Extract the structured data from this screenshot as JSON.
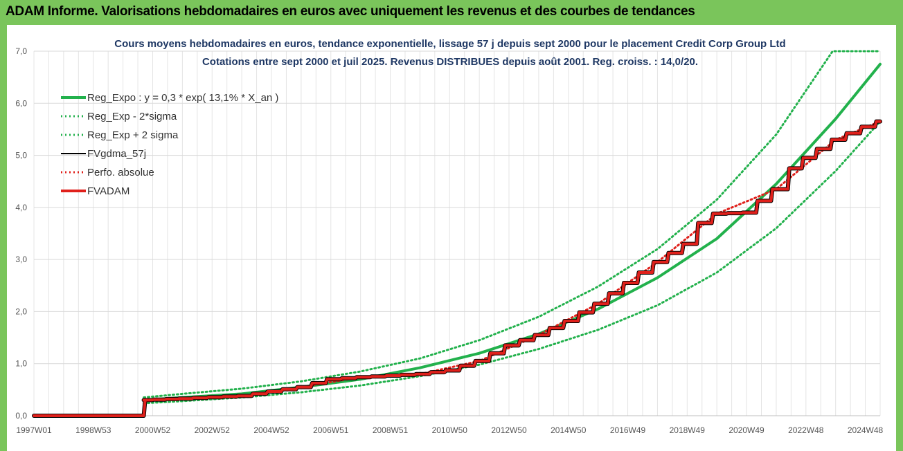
{
  "header": {
    "title": "ADAM Informe. Valorisations hebdomadaires en euros avec uniquement les revenus et des courbes de tendances"
  },
  "colors": {
    "frame": "#7ac55b",
    "trend": "#22b14c",
    "fvadam": "#e0201b",
    "fvgdma": "#000000",
    "subtitle": "#1f3864"
  },
  "chart_data": {
    "type": "line",
    "title_line1": "Cours moyens hebdomadaires en euros, tendance exponentielle, lissage 57 j depuis sept 2000 pour le placement Credit Corp Group Ltd",
    "title_line2": "Cotations entre sept 2000 et juil 2025.  Revenus DISTRIBUES depuis août 2001.  Reg. croiss. : 14,0/20.",
    "xlabel": "",
    "ylabel": "",
    "ylim": [
      0,
      7
    ],
    "yticks": [
      "0,0",
      "1,0",
      "2,0",
      "3,0",
      "4,0",
      "5,0",
      "6,0",
      "7,0"
    ],
    "xlim_years": [
      1997.0,
      2025.5
    ],
    "xticks": [
      {
        "label": "1997W01",
        "year": 1997.0
      },
      {
        "label": "1998W53",
        "year": 1999.0
      },
      {
        "label": "2000W52",
        "year": 2001.0
      },
      {
        "label": "2002W52",
        "year": 2003.0
      },
      {
        "label": "2004W52",
        "year": 2005.0
      },
      {
        "label": "2006W51",
        "year": 2007.0
      },
      {
        "label": "2008W51",
        "year": 2009.0
      },
      {
        "label": "2010W50",
        "year": 2011.0
      },
      {
        "label": "2012W50",
        "year": 2013.0
      },
      {
        "label": "2014W50",
        "year": 2015.0
      },
      {
        "label": "2016W49",
        "year": 2017.0
      },
      {
        "label": "2018W49",
        "year": 2019.0
      },
      {
        "label": "2020W49",
        "year": 2021.0
      },
      {
        "label": "2022W48",
        "year": 2023.0
      },
      {
        "label": "2024W48",
        "year": 2025.0
      }
    ],
    "grid": true,
    "legend_position": "top-left",
    "series": [
      {
        "name": "Reg_Expo : y = 0,3 * exp( 13,1% *  X_an )",
        "style": "solid-thick",
        "color": "#22b14c",
        "points": [
          [
            2000.7,
            0.3
          ],
          [
            2002,
            0.35
          ],
          [
            2004,
            0.42
          ],
          [
            2006,
            0.55
          ],
          [
            2008,
            0.7
          ],
          [
            2010,
            0.92
          ],
          [
            2012,
            1.2
          ],
          [
            2014,
            1.57
          ],
          [
            2016,
            2.05
          ],
          [
            2018,
            2.65
          ],
          [
            2020,
            3.4
          ],
          [
            2022,
            4.45
          ],
          [
            2024,
            5.7
          ],
          [
            2025.5,
            6.75
          ]
        ]
      },
      {
        "name": "Reg_Exp - 2*sigma",
        "style": "dotted",
        "color": "#22b14c",
        "points": [
          [
            2000.7,
            0.24
          ],
          [
            2002,
            0.28
          ],
          [
            2004,
            0.35
          ],
          [
            2006,
            0.45
          ],
          [
            2008,
            0.58
          ],
          [
            2010,
            0.76
          ],
          [
            2012,
            0.98
          ],
          [
            2014,
            1.28
          ],
          [
            2016,
            1.65
          ],
          [
            2018,
            2.12
          ],
          [
            2020,
            2.75
          ],
          [
            2022,
            3.6
          ],
          [
            2024,
            4.7
          ],
          [
            2025.5,
            5.65
          ]
        ]
      },
      {
        "name": "Reg_Exp + 2 sigma",
        "style": "dotted",
        "color": "#22b14c",
        "points": [
          [
            2000.7,
            0.35
          ],
          [
            2002,
            0.42
          ],
          [
            2004,
            0.52
          ],
          [
            2006,
            0.66
          ],
          [
            2008,
            0.85
          ],
          [
            2010,
            1.1
          ],
          [
            2012,
            1.45
          ],
          [
            2014,
            1.9
          ],
          [
            2016,
            2.48
          ],
          [
            2018,
            3.2
          ],
          [
            2020,
            4.15
          ],
          [
            2022,
            5.4
          ],
          [
            2023.9,
            7.0
          ],
          [
            2025.5,
            7.0
          ]
        ]
      },
      {
        "name": "FVgdma_57j",
        "style": "solid",
        "color": "#000000",
        "points": [
          [
            1997.0,
            0.0
          ],
          [
            2000.7,
            0.0
          ],
          [
            2000.7,
            0.3
          ],
          [
            2002,
            0.33
          ],
          [
            2004,
            0.38
          ],
          [
            2006,
            0.55
          ],
          [
            2007,
            0.7
          ],
          [
            2008,
            0.74
          ],
          [
            2010,
            0.8
          ],
          [
            2011,
            0.87
          ],
          [
            2012,
            1.05
          ],
          [
            2013,
            1.35
          ],
          [
            2014,
            1.55
          ],
          [
            2015,
            1.82
          ],
          [
            2016,
            2.15
          ],
          [
            2017,
            2.55
          ],
          [
            2018,
            2.95
          ],
          [
            2019,
            3.3
          ],
          [
            2019.5,
            3.7
          ],
          [
            2020,
            3.88
          ],
          [
            2021,
            3.9
          ],
          [
            2022,
            4.35
          ],
          [
            2022.6,
            4.75
          ],
          [
            2023,
            4.95
          ],
          [
            2024,
            5.3
          ],
          [
            2025,
            5.55
          ],
          [
            2025.5,
            5.65
          ]
        ]
      },
      {
        "name": "Perfo. absolue",
        "style": "dotted",
        "color": "#e0201b",
        "points": [
          [
            2000.7,
            0.3
          ],
          [
            2002,
            0.33
          ],
          [
            2004,
            0.38
          ],
          [
            2006,
            0.55
          ],
          [
            2008,
            0.74
          ],
          [
            2010,
            0.8
          ],
          [
            2012,
            1.05
          ],
          [
            2014,
            1.55
          ],
          [
            2016,
            2.15
          ],
          [
            2018,
            2.95
          ],
          [
            2020,
            3.88
          ],
          [
            2022,
            4.35
          ],
          [
            2024,
            5.3
          ],
          [
            2025.5,
            5.65
          ]
        ]
      },
      {
        "name": "FVADAM",
        "style": "solid-thick",
        "color": "#e0201b",
        "points": [
          [
            1997.0,
            0.0
          ],
          [
            2000.7,
            0.0
          ],
          [
            2000.7,
            0.3
          ],
          [
            2002,
            0.33
          ],
          [
            2004,
            0.38
          ],
          [
            2006,
            0.55
          ],
          [
            2007,
            0.7
          ],
          [
            2008,
            0.74
          ],
          [
            2010,
            0.8
          ],
          [
            2011,
            0.87
          ],
          [
            2012,
            1.05
          ],
          [
            2013,
            1.35
          ],
          [
            2014,
            1.55
          ],
          [
            2015,
            1.82
          ],
          [
            2016,
            2.15
          ],
          [
            2017,
            2.55
          ],
          [
            2018,
            2.95
          ],
          [
            2019,
            3.3
          ],
          [
            2019.5,
            3.7
          ],
          [
            2020,
            3.88
          ],
          [
            2021,
            3.9
          ],
          [
            2022,
            4.35
          ],
          [
            2022.6,
            4.75
          ],
          [
            2023,
            4.95
          ],
          [
            2024,
            5.3
          ],
          [
            2025,
            5.55
          ],
          [
            2025.5,
            5.65
          ]
        ]
      }
    ]
  }
}
